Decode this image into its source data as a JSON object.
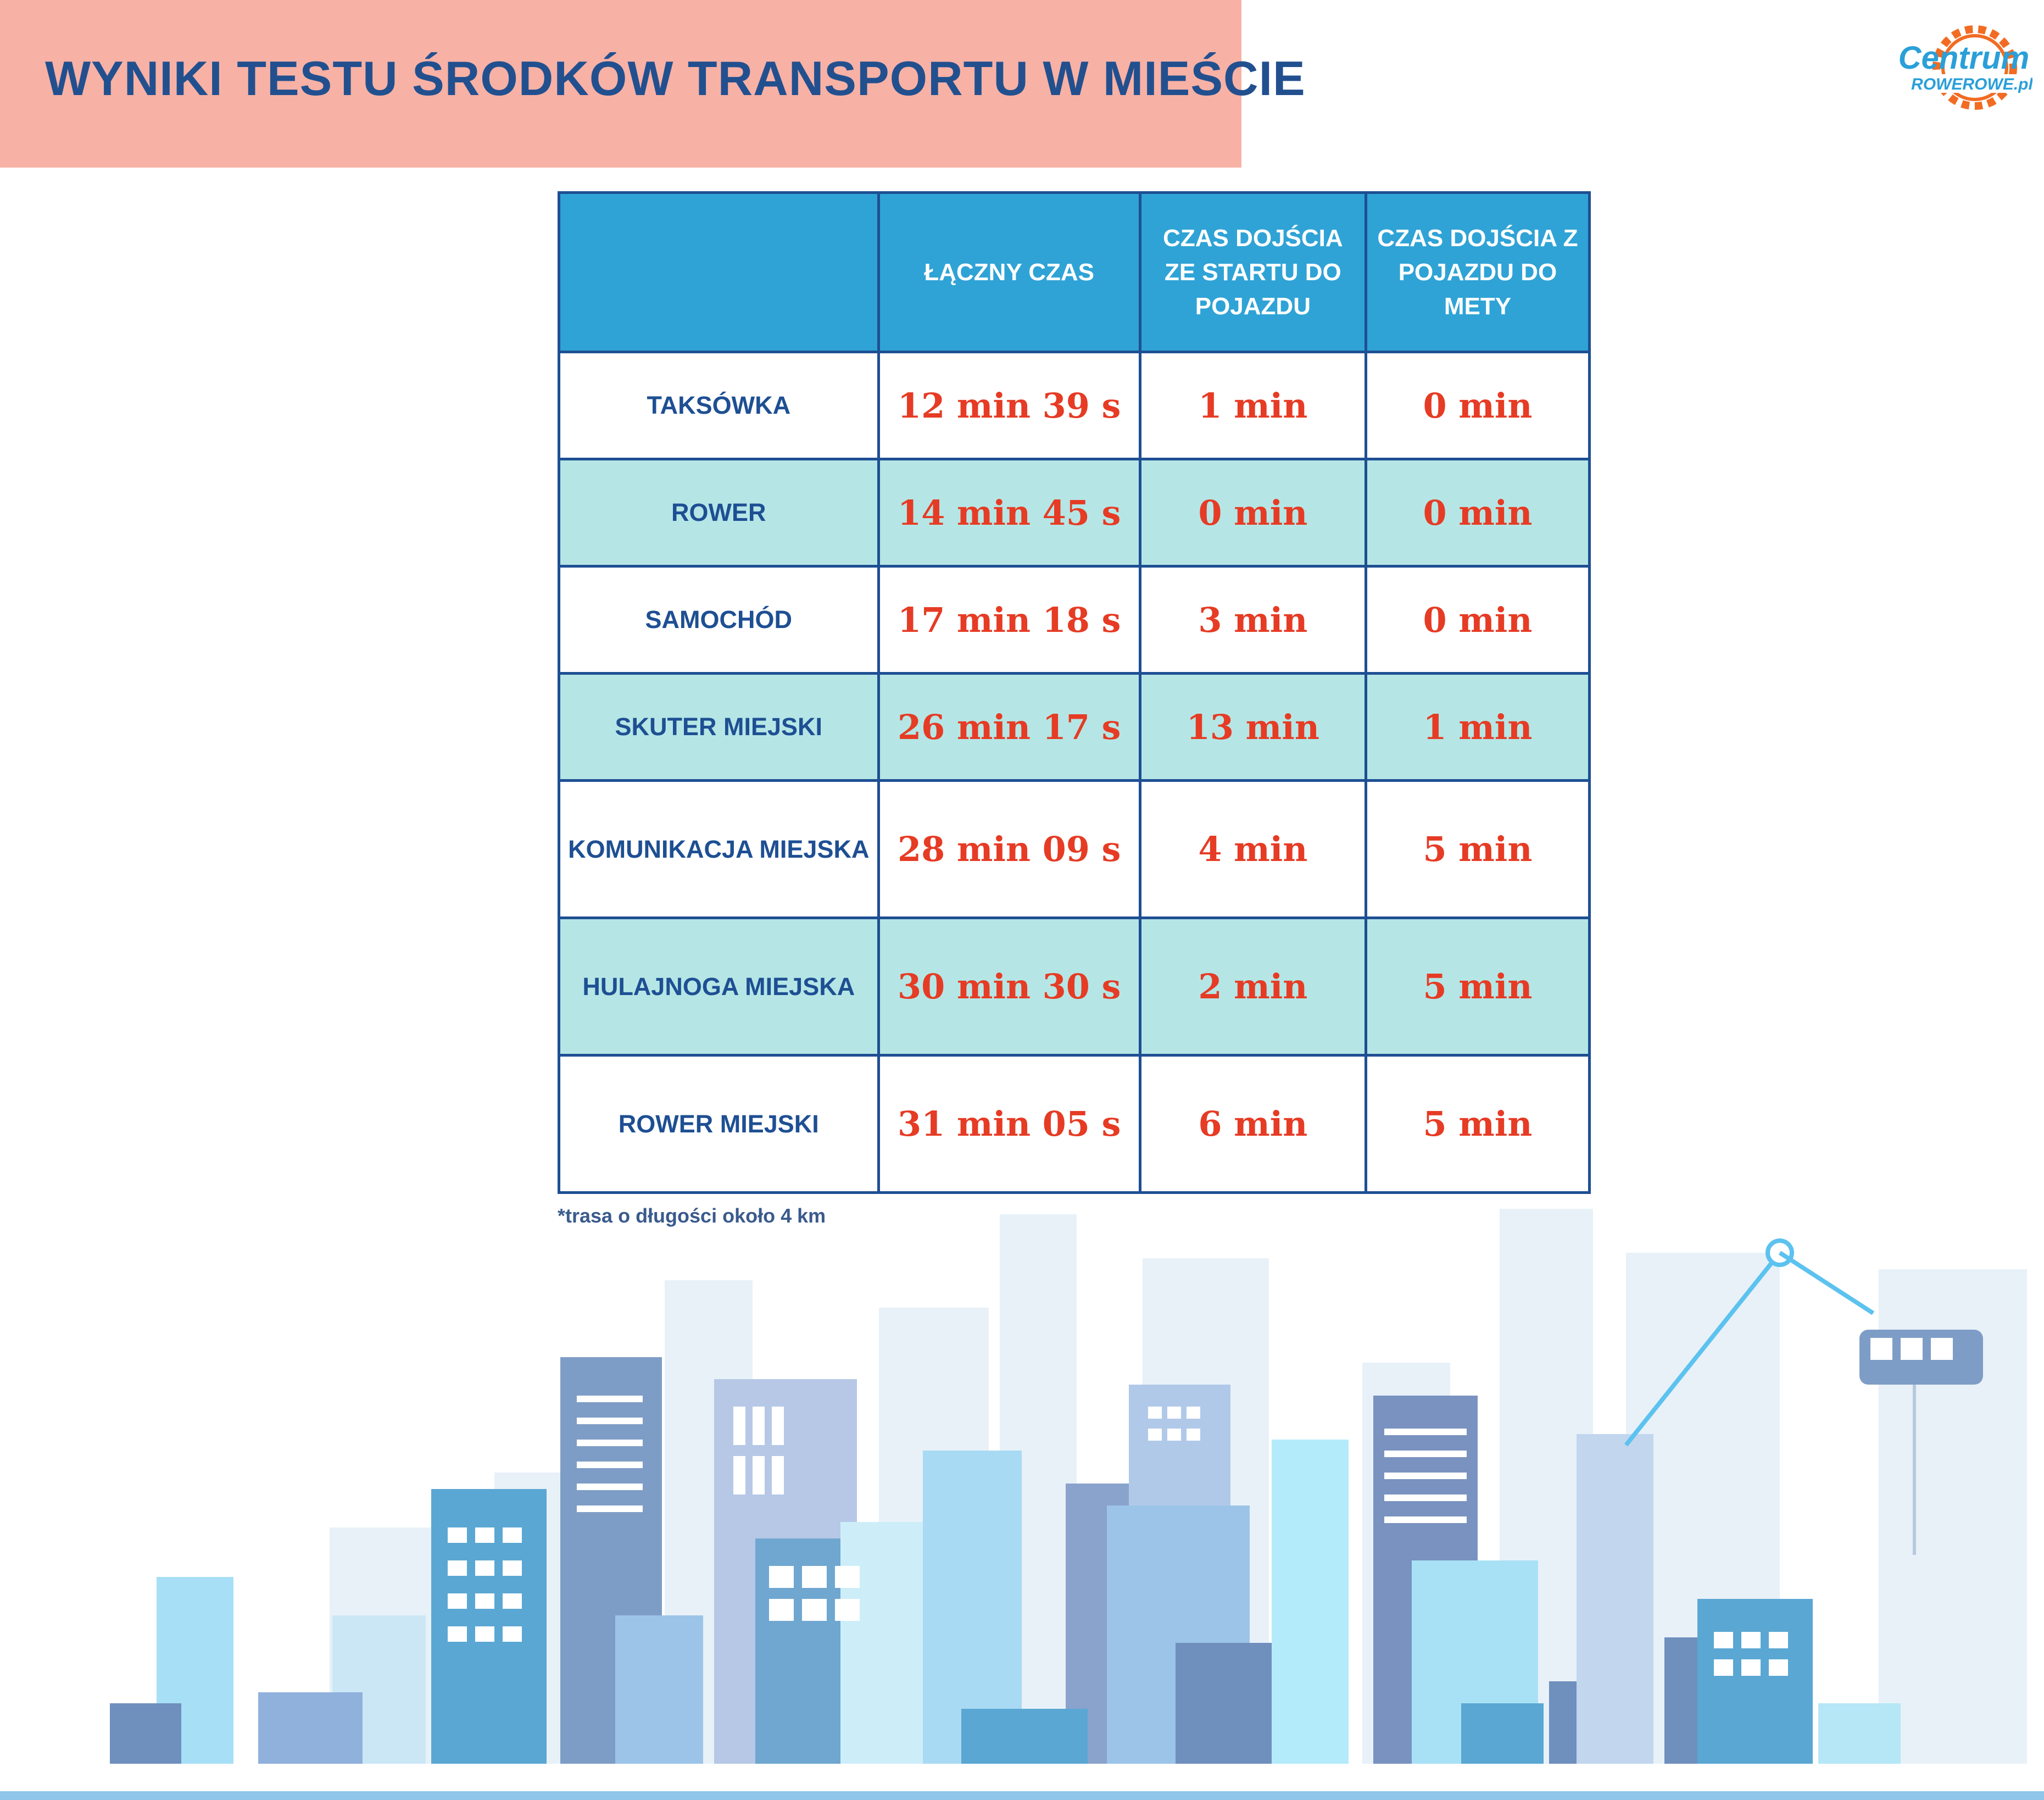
{
  "header": {
    "title": "WYNIKI TESTU ŚRODKÓW TRANSPORTU W MIEŚCIE"
  },
  "logo": {
    "line1": "Centrum",
    "line2": "ROWEROWE.pl"
  },
  "table": {
    "columns": [
      "",
      "ŁĄCZNY CZAS",
      "CZAS DOJŚCIA ZE STARTU DO POJAZDU",
      "CZAS DOJŚCIA Z POJAZDU DO METY"
    ],
    "rows": [
      {
        "name": "TAKSÓWKA",
        "total": "12 min 39 s",
        "to_vehicle": "1 min",
        "to_finish": "0 min"
      },
      {
        "name": "ROWER",
        "total": "14 min 45 s",
        "to_vehicle": "0 min",
        "to_finish": "0 min"
      },
      {
        "name": "SAMOCHÓD",
        "total": "17 min 18 s",
        "to_vehicle": "3 min",
        "to_finish": "0 min"
      },
      {
        "name": "SKUTER MIEJSKI",
        "total": "26 min 17 s",
        "to_vehicle": "13 min",
        "to_finish": "1 min"
      },
      {
        "name": "KOMUNIKACJA MIEJSKA",
        "total": "28 min 09 s",
        "to_vehicle": "4 min",
        "to_finish": "5 min"
      },
      {
        "name": "HULAJNOGA MIEJSKA",
        "total": "30 min 30 s",
        "to_vehicle": "2 min",
        "to_finish": "5 min"
      },
      {
        "name": "ROWER MIEJSKI",
        "total": "31 min 05 s",
        "to_vehicle": "6 min",
        "to_finish": "5 min"
      }
    ]
  },
  "footnote": "*trasa o długości około 4 km",
  "colors": {
    "header_band": "#f8b1a5",
    "title": "#22508f",
    "table_header": "#2fa3d6",
    "table_border": "#1e4f93",
    "row_alt": "#b5e6e5",
    "value": "#e63b24",
    "logo_orange": "#f26b22"
  },
  "illustration": "city-skyline-icon"
}
